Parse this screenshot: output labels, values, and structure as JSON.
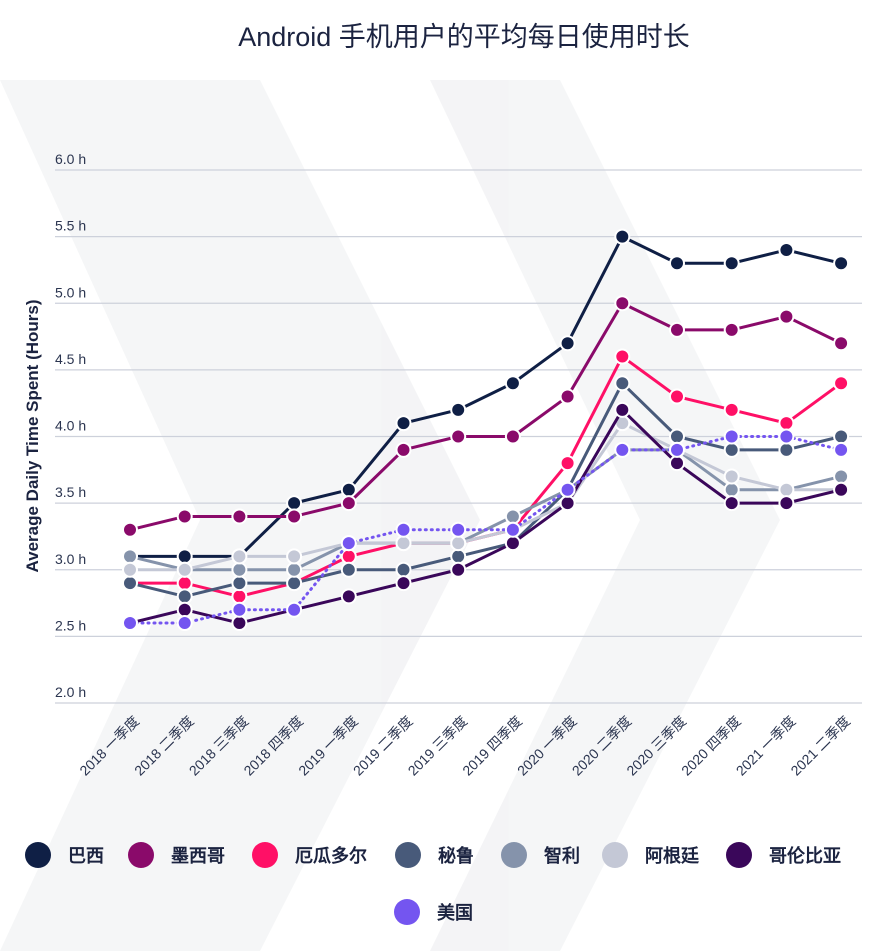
{
  "chart_data": {
    "type": "line",
    "title": "Android 手机用户的平均每日使用时长",
    "xlabel": "",
    "ylabel": "Average Daily Time Spent (Hours)",
    "ylim": [
      2.0,
      6.0
    ],
    "yticks": [
      "2.0 h",
      "2.5 h",
      "3.0 h",
      "3.5 h",
      "4.0 h",
      "4.5 h",
      "5.0 h",
      "5.5 h",
      "6.0 h"
    ],
    "ytick_values": [
      2.0,
      2.5,
      3.0,
      3.5,
      4.0,
      4.5,
      5.0,
      5.5,
      6.0
    ],
    "grid": true,
    "legend_position": "bottom",
    "categories": [
      "2018 一季度",
      "2018 二季度",
      "2018 三季度",
      "2018 四季度",
      "2019 一季度",
      "2019 二季度",
      "2019 三季度",
      "2019 四季度",
      "2020 一季度",
      "2020 二季度",
      "2020 三季度",
      "2020 四季度",
      "2021 一季度",
      "2021 二季度"
    ],
    "series": [
      {
        "name": "巴西",
        "color": "#0f1f45",
        "dashed": false,
        "values": [
          3.1,
          3.1,
          3.1,
          3.5,
          3.6,
          4.1,
          4.2,
          4.4,
          4.7,
          5.5,
          5.3,
          5.3,
          5.4,
          5.3
        ]
      },
      {
        "name": "墨西哥",
        "color": "#8a0a6a",
        "dashed": false,
        "values": [
          3.3,
          3.4,
          3.4,
          3.4,
          3.5,
          3.9,
          4.0,
          4.0,
          4.3,
          5.0,
          4.8,
          4.8,
          4.9,
          4.7
        ]
      },
      {
        "name": "厄瓜多尔",
        "color": "#ff1066",
        "dashed": false,
        "values": [
          2.9,
          2.9,
          2.8,
          2.9,
          3.1,
          3.2,
          3.2,
          3.3,
          3.8,
          4.6,
          4.3,
          4.2,
          4.1,
          4.4
        ]
      },
      {
        "name": "秘鲁",
        "color": "#485a7a",
        "dashed": false,
        "values": [
          2.9,
          2.8,
          2.9,
          2.9,
          3.0,
          3.0,
          3.1,
          3.2,
          3.6,
          4.4,
          4.0,
          3.9,
          3.9,
          4.0
        ]
      },
      {
        "name": "智利",
        "color": "#8593ab",
        "dashed": false,
        "values": [
          3.1,
          3.0,
          3.0,
          3.0,
          3.2,
          3.2,
          3.2,
          3.4,
          3.6,
          3.9,
          3.9,
          3.6,
          3.6,
          3.7
        ]
      },
      {
        "name": "阿根廷",
        "color": "#c4c8d6",
        "dashed": false,
        "values": [
          3.0,
          3.0,
          3.1,
          3.1,
          3.2,
          3.2,
          3.2,
          3.3,
          3.5,
          4.1,
          3.9,
          3.7,
          3.6,
          3.6
        ]
      },
      {
        "name": "哥伦比亚",
        "color": "#3a075a",
        "dashed": false,
        "values": [
          2.6,
          2.7,
          2.6,
          2.7,
          2.8,
          2.9,
          3.0,
          3.2,
          3.5,
          4.2,
          3.8,
          3.5,
          3.5,
          3.6
        ]
      },
      {
        "name": "美国",
        "color": "#7455f0",
        "dashed": true,
        "values": [
          2.6,
          2.6,
          2.7,
          2.7,
          3.2,
          3.3,
          3.3,
          3.3,
          3.6,
          3.9,
          3.9,
          4.0,
          4.0,
          3.9
        ]
      }
    ]
  }
}
